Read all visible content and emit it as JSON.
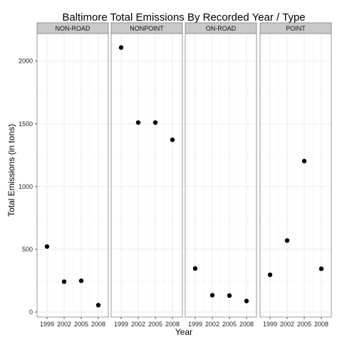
{
  "chart_data": {
    "type": "scatter",
    "title": "Baltimore Total Emissions By Recorded Year / Type",
    "xlabel": "Year",
    "ylabel": "Total Emissions (in tons)",
    "x": [
      1999,
      2002,
      2005,
      2008
    ],
    "x_tick_labels": [
      "1999",
      "2002",
      "2005",
      "2008"
    ],
    "y_ticks": [
      0,
      500,
      1000,
      1500,
      2000
    ],
    "y_tick_labels": [
      "0",
      "500",
      "1000",
      "1500",
      "2000"
    ],
    "ylim": [
      -40,
      2220
    ],
    "grid": true,
    "panels": [
      {
        "name": "NON-ROAD",
        "values": [
          522,
          242,
          249,
          55
        ]
      },
      {
        "name": "NONPOINT",
        "values": [
          2108,
          1510,
          1510,
          1373
        ]
      },
      {
        "name": "ON-ROAD",
        "values": [
          347,
          134,
          131,
          88
        ]
      },
      {
        "name": "POINT",
        "values": [
          297,
          570,
          1203,
          345
        ]
      }
    ],
    "colors": {
      "panel_background": "#ffffff",
      "panel_border": "#7f7f7f",
      "strip_fill": "#c9c9c9",
      "grid_major": "#ebebeb",
      "grid_minor": "#f5f5f5",
      "point": "#000000"
    }
  }
}
